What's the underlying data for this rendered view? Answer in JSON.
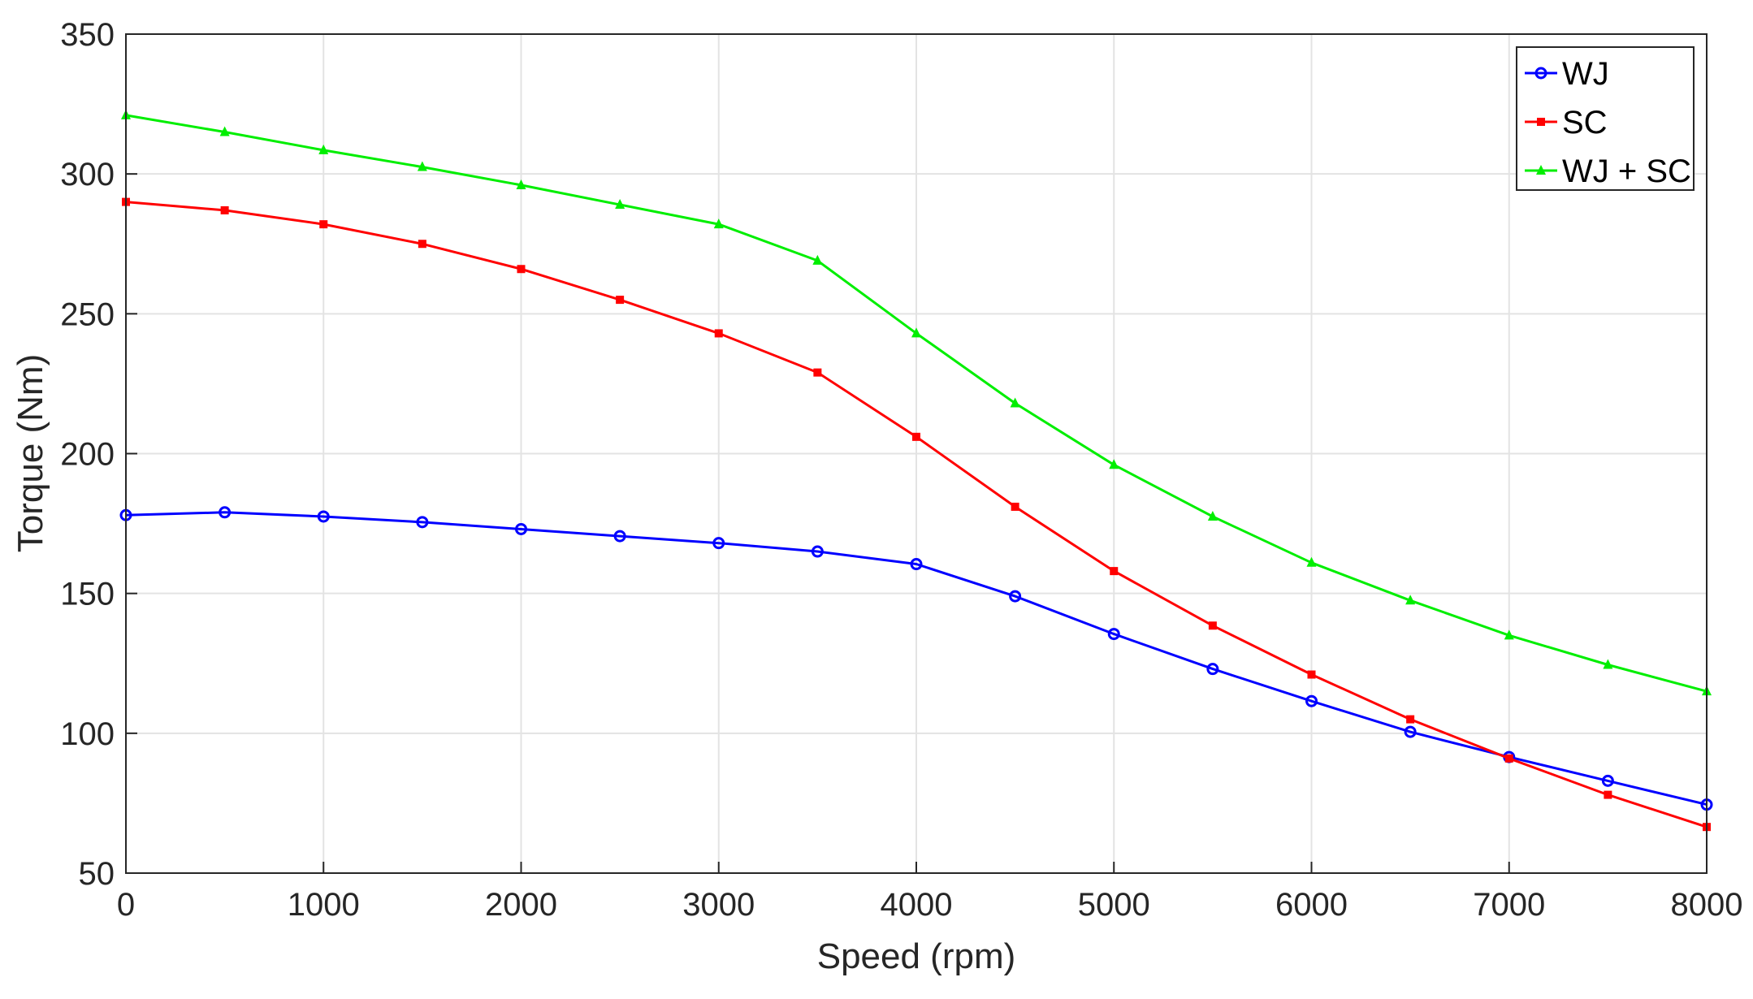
{
  "chart_data": {
    "type": "line",
    "xlabel": "Speed (rpm)",
    "ylabel": "Torque (Nm)",
    "xlim": [
      0,
      8000
    ],
    "ylim": [
      50,
      350
    ],
    "xticks": [
      0,
      1000,
      2000,
      3000,
      4000,
      5000,
      6000,
      7000,
      8000
    ],
    "yticks": [
      50,
      100,
      150,
      200,
      250,
      300,
      350
    ],
    "grid": true,
    "legend_position": "top-right",
    "x": [
      0,
      500,
      1000,
      1500,
      2000,
      2500,
      3000,
      3500,
      4000,
      4500,
      5000,
      5500,
      6000,
      6500,
      7000,
      7500,
      8000
    ],
    "series": [
      {
        "name": "WJ",
        "color": "#0000ff",
        "marker": "circle",
        "values": [
          178,
          179,
          177.5,
          175.5,
          173,
          170.5,
          168,
          165,
          160.5,
          149,
          135.5,
          123,
          111.5,
          100.5,
          91.5,
          83,
          74.5
        ]
      },
      {
        "name": "SC",
        "color": "#ff0000",
        "marker": "square",
        "values": [
          290,
          287,
          282,
          275,
          266,
          255,
          243,
          229,
          206,
          181,
          158,
          138.5,
          121,
          105,
          91,
          78,
          66.5
        ]
      },
      {
        "name": "WJ + SC",
        "color": "#00ee00",
        "marker": "triangle",
        "values": [
          321,
          315,
          308.5,
          302.5,
          296,
          289,
          282,
          269,
          243,
          218,
          196,
          177.5,
          161,
          147.5,
          135,
          124.5,
          115
        ]
      }
    ]
  }
}
